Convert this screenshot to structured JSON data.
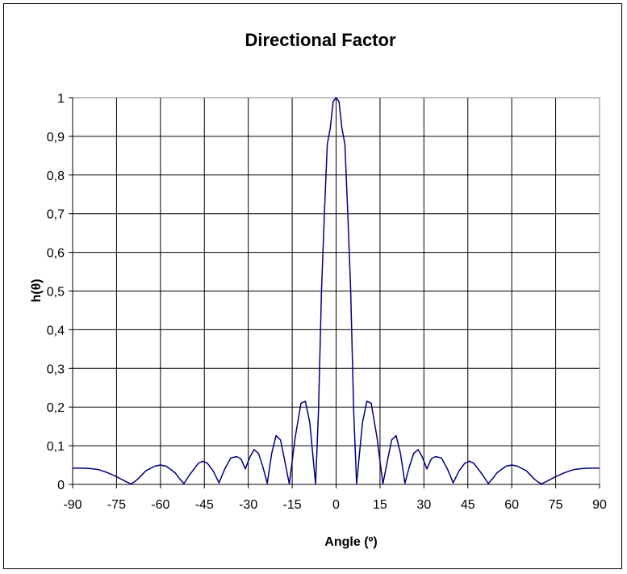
{
  "chart_data": {
    "type": "line",
    "title": "Directional Factor",
    "xlabel": "Angle (º)",
    "ylabel": "h(θ)",
    "xlim": [
      -90,
      90
    ],
    "ylim": [
      0,
      1
    ],
    "x_ticks": [
      -90,
      -75,
      -60,
      -45,
      -30,
      -15,
      0,
      15,
      30,
      45,
      60,
      75,
      90
    ],
    "y_ticks": [
      0,
      0.1,
      0.2,
      0.3,
      0.4,
      0.5,
      0.6,
      0.7,
      0.8,
      0.9,
      1
    ],
    "y_tick_labels": [
      "0",
      "0,1",
      "0,2",
      "0,3",
      "0,4",
      "0,5",
      "0,6",
      "0,7",
      "0,8",
      "0,9",
      "1"
    ],
    "grid": true,
    "legend": "none",
    "colors": {
      "line": "#000080",
      "grid": "#000000",
      "plot_background": "#ffffff"
    },
    "series": [
      {
        "x": [
          -90,
          -87,
          -84,
          -81,
          -78,
          -75,
          -72,
          -70,
          -68,
          -65,
          -62,
          -60,
          -58,
          -55,
          -53.5,
          -52,
          -50,
          -47,
          -45.5,
          -44,
          -42,
          -40,
          -38,
          -36,
          -34,
          -32.5,
          -31,
          -29.5,
          -28,
          -26.5,
          -25,
          -23.5,
          -22,
          -20.5,
          -19,
          -17.5,
          -16,
          -14,
          -12,
          -10.5,
          -9,
          -8,
          -7,
          -6,
          -5,
          -4,
          -3,
          -2,
          -1,
          0,
          1,
          2,
          3,
          4,
          5,
          6,
          7,
          8,
          9,
          10.5,
          12,
          14,
          16,
          17.5,
          19,
          20.5,
          22,
          23.5,
          25,
          26.5,
          28,
          29.5,
          31,
          32.5,
          34,
          36,
          38,
          40,
          42,
          44,
          45.5,
          47,
          50,
          52,
          53.5,
          55,
          58,
          60,
          62,
          65,
          68,
          70,
          72,
          75,
          78,
          81,
          84,
          87,
          90
        ],
        "y": [
          0.042,
          0.042,
          0.041,
          0.038,
          0.03,
          0.02,
          0.008,
          0.001,
          0.012,
          0.035,
          0.047,
          0.05,
          0.047,
          0.03,
          0.015,
          0.002,
          0.025,
          0.055,
          0.06,
          0.055,
          0.035,
          0.004,
          0.04,
          0.068,
          0.072,
          0.066,
          0.04,
          0.07,
          0.09,
          0.08,
          0.045,
          0.003,
          0.08,
          0.126,
          0.115,
          0.06,
          0.001,
          0.12,
          0.21,
          0.215,
          0.16,
          0.08,
          0.001,
          0.19,
          0.5,
          0.7,
          0.88,
          0.92,
          0.99,
          1.0,
          0.99,
          0.92,
          0.88,
          0.7,
          0.5,
          0.19,
          0.001,
          0.08,
          0.16,
          0.215,
          0.21,
          0.12,
          0.001,
          0.06,
          0.115,
          0.126,
          0.08,
          0.003,
          0.045,
          0.08,
          0.09,
          0.07,
          0.04,
          0.066,
          0.072,
          0.068,
          0.04,
          0.004,
          0.035,
          0.055,
          0.06,
          0.055,
          0.025,
          0.002,
          0.015,
          0.03,
          0.047,
          0.05,
          0.047,
          0.035,
          0.012,
          0.001,
          0.008,
          0.02,
          0.03,
          0.038,
          0.041,
          0.042,
          0.042
        ]
      }
    ]
  }
}
